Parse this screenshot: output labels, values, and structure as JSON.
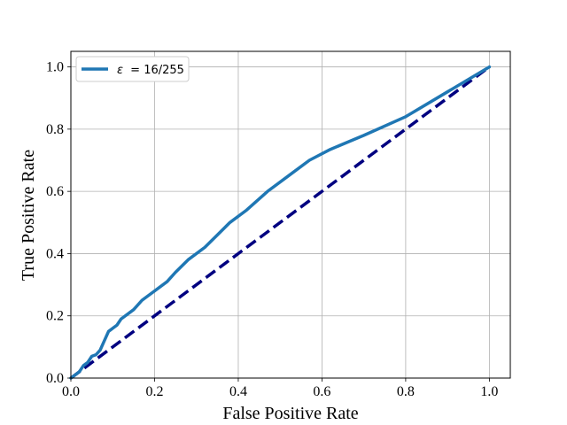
{
  "chart_data": {
    "type": "line",
    "xlabel": "False Positive Rate",
    "ylabel": "True Positive Rate",
    "xlim": [
      0.0,
      1.05
    ],
    "ylim": [
      0.0,
      1.05
    ],
    "x_ticks": [
      "0.0",
      "0.2",
      "0.4",
      "0.6",
      "0.8",
      "1.0"
    ],
    "y_ticks": [
      "0.0",
      "0.2",
      "0.4",
      "0.6",
      "0.8",
      "1.0"
    ],
    "grid": true,
    "legend_position": "top-left",
    "series": [
      {
        "name": "ε = 16/255",
        "legend_symbol": "ε",
        "legend_value": "= 16/255",
        "color": "#1f77b4",
        "style": "solid",
        "x": [
          0.0,
          0.01,
          0.02,
          0.03,
          0.04,
          0.05,
          0.06,
          0.07,
          0.08,
          0.09,
          0.1,
          0.11,
          0.12,
          0.15,
          0.17,
          0.2,
          0.23,
          0.25,
          0.28,
          0.32,
          0.35,
          0.38,
          0.42,
          0.47,
          0.52,
          0.57,
          0.62,
          0.7,
          0.8,
          0.9,
          1.0
        ],
        "y": [
          0.0,
          0.01,
          0.02,
          0.04,
          0.05,
          0.07,
          0.075,
          0.09,
          0.12,
          0.15,
          0.16,
          0.17,
          0.19,
          0.22,
          0.25,
          0.28,
          0.31,
          0.34,
          0.38,
          0.42,
          0.46,
          0.5,
          0.54,
          0.6,
          0.65,
          0.7,
          0.735,
          0.78,
          0.84,
          0.92,
          1.0
        ]
      },
      {
        "name": "",
        "color": "#000080",
        "style": "dashed",
        "x": [
          0.0,
          1.0
        ],
        "y": [
          0.0,
          1.0
        ]
      }
    ]
  }
}
